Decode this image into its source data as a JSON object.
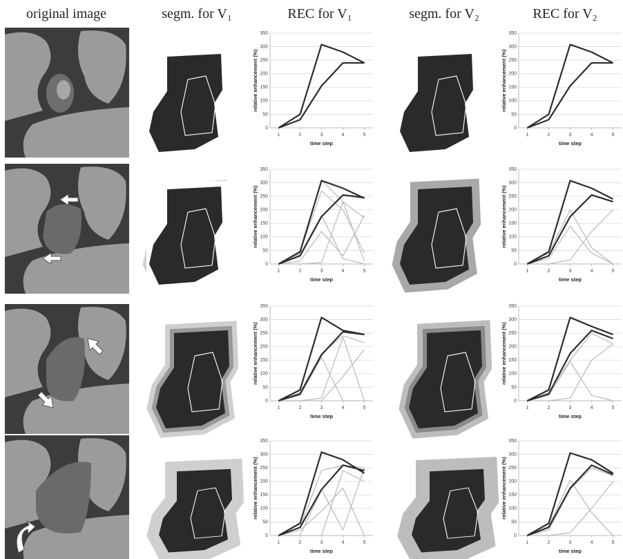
{
  "headers": [
    "original image",
    "segm. for V₁",
    "REC for V₁",
    "segm. for V₂",
    "REC for V₂"
  ],
  "chart_data": [
    {
      "type": "line",
      "ylabel": "relative enhancement (%)",
      "xlabel": "time step",
      "x": [
        1,
        2,
        3,
        4,
        5
      ],
      "xlim": [
        0.6,
        5.4
      ],
      "xticks": [
        1,
        2,
        3,
        4,
        5
      ],
      "ylim": [
        0,
        350
      ],
      "yticks": [
        0,
        50,
        100,
        150,
        200,
        250,
        300,
        350
      ],
      "grid": true,
      "series": [
        {
          "color": "#2b2b2b",
          "width": 2.2,
          "values": [
            0,
            50,
            308,
            280,
            240
          ]
        },
        {
          "color": "#2b2b2b",
          "width": 2.2,
          "values": [
            0,
            30,
            155,
            240,
            240
          ]
        }
      ]
    },
    {
      "type": "line",
      "ylabel": "relative enhancement (%)",
      "xlabel": "time step",
      "x": [
        1,
        2,
        3,
        4,
        5
      ],
      "xlim": [
        0.6,
        5.4
      ],
      "xticks": [
        1,
        2,
        3,
        4,
        5
      ],
      "ylim": [
        0,
        350
      ],
      "yticks": [
        0,
        50,
        100,
        150,
        200,
        250,
        300,
        350
      ],
      "grid": true,
      "series": [
        {
          "color": "#2b2b2b",
          "width": 2.2,
          "values": [
            0,
            50,
            308,
            280,
            240
          ]
        },
        {
          "color": "#2b2b2b",
          "width": 2.2,
          "values": [
            0,
            30,
            155,
            240,
            240
          ]
        }
      ]
    },
    {
      "type": "line",
      "ylabel": "relative enhancement (%)",
      "xlabel": "time step",
      "x": [
        1,
        2,
        3,
        4,
        5
      ],
      "xlim": [
        0.6,
        5.4
      ],
      "xticks": [
        1,
        2,
        3,
        4,
        5
      ],
      "ylim": [
        0,
        350
      ],
      "yticks": [
        0,
        50,
        100,
        150,
        200,
        250,
        300,
        350
      ],
      "grid": true,
      "series": [
        {
          "color": "#bdbdbd",
          "width": 1.3,
          "values": [
            0,
            40,
            310,
            230,
            10
          ]
        },
        {
          "color": "#bdbdbd",
          "width": 1.3,
          "values": [
            0,
            45,
            270,
            200,
            40
          ]
        },
        {
          "color": "#bdbdbd",
          "width": 1.3,
          "values": [
            0,
            10,
            120,
            30,
            180
          ]
        },
        {
          "color": "#bdbdbd",
          "width": 1.3,
          "values": [
            0,
            0,
            5,
            230,
            170
          ]
        },
        {
          "color": "#bdbdbd",
          "width": 1.3,
          "values": [
            0,
            35,
            180,
            20,
            0
          ]
        },
        {
          "color": "#2b2b2b",
          "width": 2.2,
          "values": [
            0,
            45,
            308,
            280,
            243
          ]
        },
        {
          "color": "#2b2b2b",
          "width": 2.2,
          "values": [
            0,
            30,
            175,
            255,
            245
          ]
        }
      ]
    },
    {
      "type": "line",
      "ylabel": "relative enhancement (%)",
      "xlabel": "time step",
      "x": [
        1,
        2,
        3,
        4,
        5
      ],
      "xlim": [
        0.6,
        5.4
      ],
      "xticks": [
        1,
        2,
        3,
        4,
        5
      ],
      "ylim": [
        0,
        350
      ],
      "yticks": [
        0,
        50,
        100,
        150,
        200,
        250,
        300,
        350
      ],
      "grid": true,
      "series": [
        {
          "color": "#bdbdbd",
          "width": 1.3,
          "values": [
            0,
            40,
            200,
            60,
            0
          ]
        },
        {
          "color": "#bdbdbd",
          "width": 1.3,
          "values": [
            0,
            20,
            140,
            40,
            0
          ]
        },
        {
          "color": "#bdbdbd",
          "width": 1.3,
          "values": [
            0,
            0,
            15,
            120,
            200
          ]
        },
        {
          "color": "#2b2b2b",
          "width": 2.2,
          "values": [
            0,
            45,
            308,
            280,
            240
          ]
        },
        {
          "color": "#2b2b2b",
          "width": 2.2,
          "values": [
            0,
            30,
            175,
            255,
            230
          ]
        }
      ]
    },
    {
      "type": "line",
      "ylabel": "relative enhancement (%)",
      "xlabel": "time step",
      "x": [
        1,
        2,
        3,
        4,
        5
      ],
      "xlim": [
        0.6,
        5.4
      ],
      "xticks": [
        1,
        2,
        3,
        4,
        5
      ],
      "ylim": [
        0,
        350
      ],
      "yticks": [
        0,
        50,
        100,
        150,
        200,
        250,
        300,
        350
      ],
      "grid": true,
      "series": [
        {
          "color": "#bdbdbd",
          "width": 1.3,
          "values": [
            0,
            30,
            175,
            240,
            215
          ]
        },
        {
          "color": "#bdbdbd",
          "width": 1.3,
          "values": [
            0,
            0,
            10,
            235,
            0
          ]
        },
        {
          "color": "#bdbdbd",
          "width": 1.3,
          "values": [
            0,
            0,
            0,
            90,
            190
          ]
        },
        {
          "color": "#bdbdbd",
          "width": 1.3,
          "values": [
            0,
            20,
            160,
            0,
            0
          ]
        },
        {
          "color": "#2b2b2b",
          "width": 2.2,
          "values": [
            0,
            40,
            308,
            260,
            245
          ]
        },
        {
          "color": "#2b2b2b",
          "width": 2.2,
          "values": [
            0,
            25,
            170,
            255,
            245
          ]
        }
      ]
    },
    {
      "type": "line",
      "ylabel": "relative enhancement (%)",
      "xlabel": "time step",
      "x": [
        1,
        2,
        3,
        4,
        5
      ],
      "xlim": [
        0.6,
        5.4
      ],
      "xticks": [
        1,
        2,
        3,
        4,
        5
      ],
      "ylim": [
        0,
        350
      ],
      "yticks": [
        0,
        50,
        100,
        150,
        200,
        250,
        300,
        350
      ],
      "grid": true,
      "series": [
        {
          "color": "#bdbdbd",
          "width": 1.3,
          "values": [
            0,
            30,
            150,
            250,
            210
          ]
        },
        {
          "color": "#bdbdbd",
          "width": 1.3,
          "values": [
            0,
            20,
            145,
            20,
            0
          ]
        },
        {
          "color": "#bdbdbd",
          "width": 1.3,
          "values": [
            0,
            0,
            10,
            150,
            210
          ]
        },
        {
          "color": "#2b2b2b",
          "width": 2.2,
          "values": [
            0,
            40,
            308,
            275,
            245
          ]
        },
        {
          "color": "#2b2b2b",
          "width": 2.2,
          "values": [
            0,
            25,
            175,
            260,
            230
          ]
        }
      ]
    },
    {
      "type": "line",
      "ylabel": "relative enhancement (%)",
      "xlabel": "time step",
      "x": [
        1,
        2,
        3,
        4,
        5
      ],
      "xlim": [
        0.6,
        5.4
      ],
      "xticks": [
        1,
        2,
        3,
        4,
        5
      ],
      "ylim": [
        0,
        350
      ],
      "yticks": [
        0,
        50,
        100,
        150,
        200,
        250,
        300,
        350
      ],
      "grid": true,
      "series": [
        {
          "color": "#bdbdbd",
          "width": 1.3,
          "values": [
            0,
            30,
            240,
            260,
            250
          ]
        },
        {
          "color": "#bdbdbd",
          "width": 1.3,
          "values": [
            0,
            0,
            170,
            20,
            250
          ]
        },
        {
          "color": "#bdbdbd",
          "width": 1.3,
          "values": [
            0,
            20,
            90,
            175,
            0
          ]
        },
        {
          "color": "#bdbdbd",
          "width": 1.3,
          "values": [
            0,
            0,
            0,
            240,
            200
          ]
        },
        {
          "color": "#2b2b2b",
          "width": 2.2,
          "values": [
            0,
            45,
            308,
            280,
            230
          ]
        },
        {
          "color": "#2b2b2b",
          "width": 2.2,
          "values": [
            0,
            30,
            170,
            260,
            240
          ]
        }
      ]
    },
    {
      "type": "line",
      "ylabel": "relative enhancement (%)",
      "xlabel": "time step",
      "x": [
        1,
        2,
        3,
        4,
        5
      ],
      "xlim": [
        0.6,
        5.4
      ],
      "xticks": [
        1,
        2,
        3,
        4,
        5
      ],
      "ylim": [
        0,
        350
      ],
      "yticks": [
        0,
        50,
        100,
        150,
        200,
        250,
        300,
        350
      ],
      "grid": true,
      "series": [
        {
          "color": "#bdbdbd",
          "width": 1.3,
          "values": [
            0,
            35,
            205,
            85,
            0
          ]
        },
        {
          "color": "#bdbdbd",
          "width": 1.3,
          "values": [
            0,
            20,
            170,
            250,
            220
          ]
        },
        {
          "color": "#bdbdbd",
          "width": 1.3,
          "values": [
            0,
            0,
            10,
            100,
            200
          ]
        },
        {
          "color": "#2b2b2b",
          "width": 2.2,
          "values": [
            0,
            45,
            305,
            280,
            230
          ]
        },
        {
          "color": "#2b2b2b",
          "width": 2.2,
          "values": [
            0,
            30,
            175,
            260,
            225
          ]
        }
      ]
    }
  ]
}
